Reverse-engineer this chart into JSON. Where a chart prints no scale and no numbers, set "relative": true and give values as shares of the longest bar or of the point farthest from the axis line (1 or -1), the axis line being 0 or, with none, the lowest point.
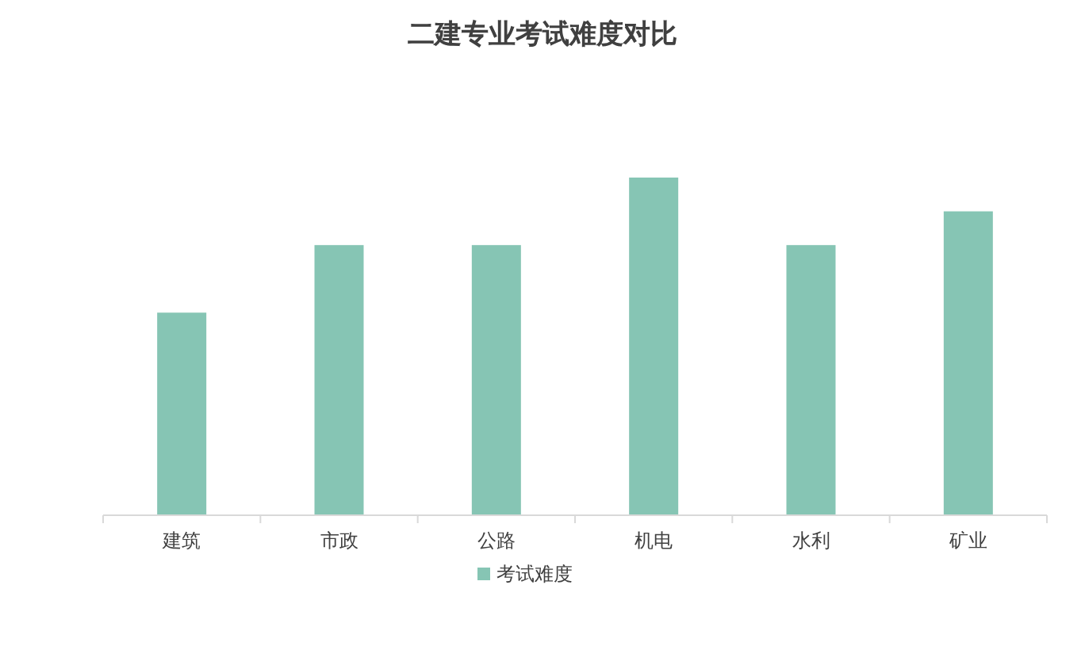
{
  "chart_data": {
    "type": "bar",
    "title": "二建专业考试难度对比",
    "categories": [
      "建筑",
      "市政",
      "公路",
      "机电",
      "水利",
      "矿业"
    ],
    "series": [
      {
        "name": "考试难度",
        "color": "#86c5b4",
        "values": [
          0.6,
          0.8,
          0.8,
          1,
          0.8,
          0.9
        ]
      }
    ],
    "relative": true,
    "legend": "bottom"
  }
}
